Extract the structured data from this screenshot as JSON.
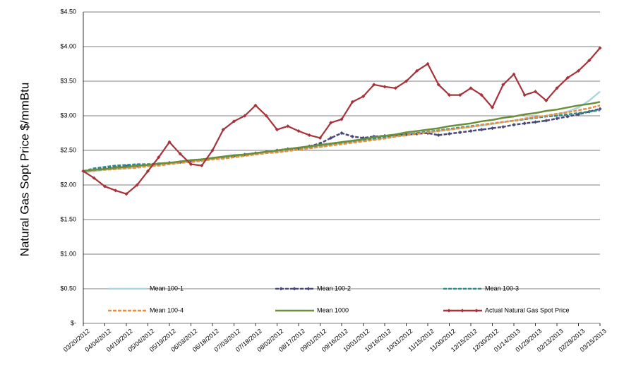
{
  "chart_data": {
    "type": "line",
    "y_label": "Natural Gas Sopt Price $/mmBtu",
    "categories": [
      "03/20/2012",
      null,
      "04/04/2012",
      null,
      "04/19/2012",
      null,
      "05/04/2012",
      null,
      "05/19/2012",
      null,
      "06/03/2012",
      null,
      "06/18/2012",
      null,
      "07/03/2012",
      null,
      "07/18/2012",
      null,
      "08/02/2012",
      null,
      "08/17/2012",
      null,
      "09/01/2012",
      null,
      "09/16/2012",
      null,
      "10/01/2012",
      null,
      "10/16/2012",
      null,
      "10/31/2012",
      null,
      "11/15/2012",
      null,
      "11/30/2012",
      null,
      "12/15/2012",
      null,
      "12/30/2012",
      null,
      "01/14/2013",
      null,
      "01/29/2013",
      null,
      "02/13/2013",
      null,
      "02/28/2013",
      null,
      "03/15/2013"
    ],
    "ylim": [
      0,
      4.5
    ],
    "yticks": [
      {
        "value": 0,
        "label": "$-"
      },
      {
        "value": 0.5,
        "label": "$0.50"
      },
      {
        "value": 1,
        "label": "$1.00"
      },
      {
        "value": 1.5,
        "label": "$1.50"
      },
      {
        "value": 2,
        "label": "$2.00"
      },
      {
        "value": 2.5,
        "label": "$2.50"
      },
      {
        "value": 3,
        "label": "$3.00"
      },
      {
        "value": 3.5,
        "label": "$3.50"
      },
      {
        "value": 4,
        "label": "$4.00"
      },
      {
        "value": 4.5,
        "label": "$4.50"
      }
    ],
    "grid": true,
    "legend": "bottom",
    "series": [
      {
        "name": "Mean 100-1",
        "color": "#a9d6df",
        "dashed": false,
        "marker": false,
        "values": [
          2.18,
          2.2,
          2.22,
          2.23,
          2.24,
          2.26,
          2.28,
          2.29,
          2.31,
          2.32,
          2.34,
          2.36,
          2.38,
          2.39,
          2.41,
          2.43,
          2.45,
          2.47,
          2.48,
          2.5,
          2.52,
          2.54,
          2.56,
          2.58,
          2.6,
          2.62,
          2.64,
          2.66,
          2.68,
          2.7,
          2.72,
          2.74,
          2.76,
          2.78,
          2.8,
          2.82,
          2.84,
          2.86,
          2.88,
          2.91,
          2.93,
          2.95,
          2.98,
          3.0,
          3.02,
          3.06,
          3.12,
          3.22,
          3.35
        ]
      },
      {
        "name": "Mean 100-2",
        "color": "#4a4a7a",
        "dashed": true,
        "marker": true,
        "values": [
          2.2,
          2.22,
          2.24,
          2.26,
          2.27,
          2.28,
          2.29,
          2.3,
          2.32,
          2.33,
          2.35,
          2.36,
          2.38,
          2.4,
          2.42,
          2.44,
          2.46,
          2.48,
          2.5,
          2.52,
          2.53,
          2.56,
          2.6,
          2.68,
          2.75,
          2.7,
          2.68,
          2.7,
          2.71,
          2.72,
          2.73,
          2.74,
          2.75,
          2.72,
          2.74,
          2.76,
          2.78,
          2.8,
          2.82,
          2.84,
          2.87,
          2.89,
          2.91,
          2.93,
          2.96,
          2.99,
          3.02,
          3.06,
          3.1
        ]
      },
      {
        "name": "Mean 100-3",
        "color": "#2e8b8b",
        "dashed": true,
        "marker": false,
        "values": [
          2.2,
          2.24,
          2.26,
          2.28,
          2.29,
          2.3,
          2.3,
          2.31,
          2.32,
          2.33,
          2.35,
          2.37,
          2.38,
          2.4,
          2.42,
          2.44,
          2.45,
          2.47,
          2.49,
          2.51,
          2.53,
          2.55,
          2.57,
          2.59,
          2.61,
          2.63,
          2.65,
          2.67,
          2.69,
          2.71,
          2.73,
          2.75,
          2.77,
          2.79,
          2.81,
          2.83,
          2.85,
          2.87,
          2.89,
          2.91,
          2.93,
          2.95,
          2.97,
          2.99,
          3.0,
          3.02,
          3.04,
          3.06,
          3.08
        ]
      },
      {
        "name": "Mean 100-4",
        "color": "#e8903a",
        "dashed": true,
        "marker": false,
        "values": [
          2.2,
          2.21,
          2.22,
          2.23,
          2.24,
          2.25,
          2.27,
          2.28,
          2.3,
          2.32,
          2.33,
          2.35,
          2.37,
          2.38,
          2.4,
          2.42,
          2.44,
          2.46,
          2.47,
          2.49,
          2.51,
          2.53,
          2.55,
          2.57,
          2.59,
          2.61,
          2.63,
          2.65,
          2.67,
          2.7,
          2.72,
          2.74,
          2.76,
          2.78,
          2.8,
          2.82,
          2.84,
          2.87,
          2.89,
          2.91,
          2.93,
          2.96,
          2.98,
          3.0,
          3.03,
          3.05,
          3.08,
          3.11,
          3.15
        ]
      },
      {
        "name": "Mean 1000",
        "color": "#6b8e3a",
        "dashed": false,
        "marker": false,
        "values": [
          2.2,
          2.22,
          2.23,
          2.25,
          2.26,
          2.28,
          2.29,
          2.31,
          2.32,
          2.34,
          2.36,
          2.37,
          2.39,
          2.41,
          2.43,
          2.44,
          2.46,
          2.48,
          2.5,
          2.52,
          2.54,
          2.56,
          2.58,
          2.6,
          2.62,
          2.64,
          2.66,
          2.69,
          2.71,
          2.73,
          2.76,
          2.78,
          2.8,
          2.82,
          2.85,
          2.87,
          2.89,
          2.92,
          2.94,
          2.97,
          2.99,
          3.02,
          3.04,
          3.07,
          3.09,
          3.12,
          3.15,
          3.17,
          3.2
        ]
      },
      {
        "name": "Actual Natural Gas Spot Price",
        "color": "#a8323a",
        "dashed": false,
        "marker": true,
        "values": [
          2.2,
          2.1,
          1.98,
          1.92,
          1.87,
          2.0,
          2.2,
          2.4,
          2.62,
          2.45,
          2.3,
          2.28,
          2.5,
          2.8,
          2.92,
          3.0,
          3.15,
          3.0,
          2.8,
          2.85,
          2.78,
          2.72,
          2.68,
          2.9,
          2.95,
          3.2,
          3.28,
          3.45,
          3.42,
          3.4,
          3.5,
          3.65,
          3.75,
          3.45,
          3.3,
          3.3,
          3.4,
          3.3,
          3.12,
          3.45,
          3.6,
          3.3,
          3.35,
          3.22,
          3.4,
          3.55,
          3.65,
          3.8,
          3.98
        ]
      }
    ]
  }
}
